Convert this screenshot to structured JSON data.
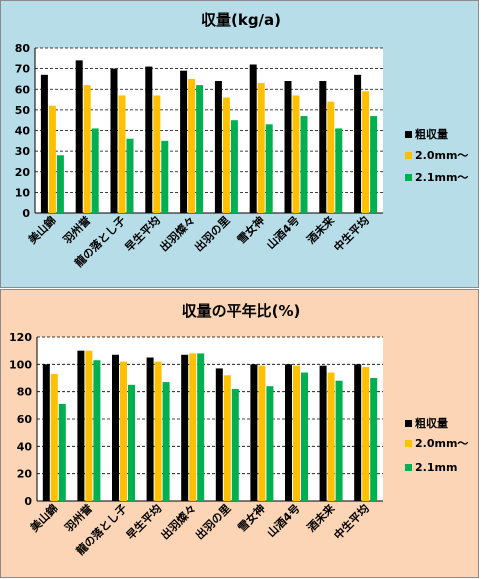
{
  "chart_data": [
    {
      "type": "bar",
      "title": "収量(kg/a)",
      "categories": [
        "美山錦",
        "羽州誉",
        "龍の落とし子",
        "早生平均",
        "出羽燦々",
        "出羽の里",
        "雪女神",
        "山酒4号",
        "酒未来",
        "中生平均"
      ],
      "series": [
        {
          "name": "粗収量",
          "color": "#000000",
          "values": [
            67,
            74,
            70,
            71,
            69,
            64,
            72,
            64,
            64,
            67
          ]
        },
        {
          "name": "2.0mm〜",
          "color": "#ffc000",
          "values": [
            52,
            62,
            57,
            57,
            65,
            56,
            63,
            57,
            54,
            59
          ]
        },
        {
          "name": "2.1mm〜",
          "color": "#00b050",
          "values": [
            28,
            41,
            36,
            35,
            62,
            45,
            43,
            47,
            41,
            47
          ]
        }
      ],
      "ylim": [
        0,
        80
      ],
      "yticks": [
        0,
        10,
        20,
        30,
        40,
        50,
        60,
        70,
        80
      ],
      "grid": true,
      "legend": "right"
    },
    {
      "type": "bar",
      "title": "収量の平年比(%)",
      "categories": [
        "美山錦",
        "羽州誉",
        "龍の落とし子",
        "早生平均",
        "出羽燦々",
        "出羽の里",
        "雪女神",
        "山酒4号",
        "酒未来",
        "中生平均"
      ],
      "series": [
        {
          "name": "粗収量",
          "color": "#000000",
          "values": [
            100,
            110,
            107,
            105,
            107,
            97,
            100,
            100,
            99,
            100
          ]
        },
        {
          "name": "2.0mm〜",
          "color": "#ffc000",
          "values": [
            93,
            110,
            102,
            102,
            108,
            92,
            99,
            99,
            94,
            98
          ]
        },
        {
          "name": "2.1mm",
          "color": "#00b050",
          "values": [
            71,
            103,
            85,
            87,
            108,
            82,
            84,
            94,
            88,
            90
          ]
        }
      ],
      "ylim": [
        0,
        120
      ],
      "yticks": [
        0,
        20,
        40,
        60,
        80,
        100,
        120
      ],
      "grid": true,
      "legend": "right"
    }
  ]
}
